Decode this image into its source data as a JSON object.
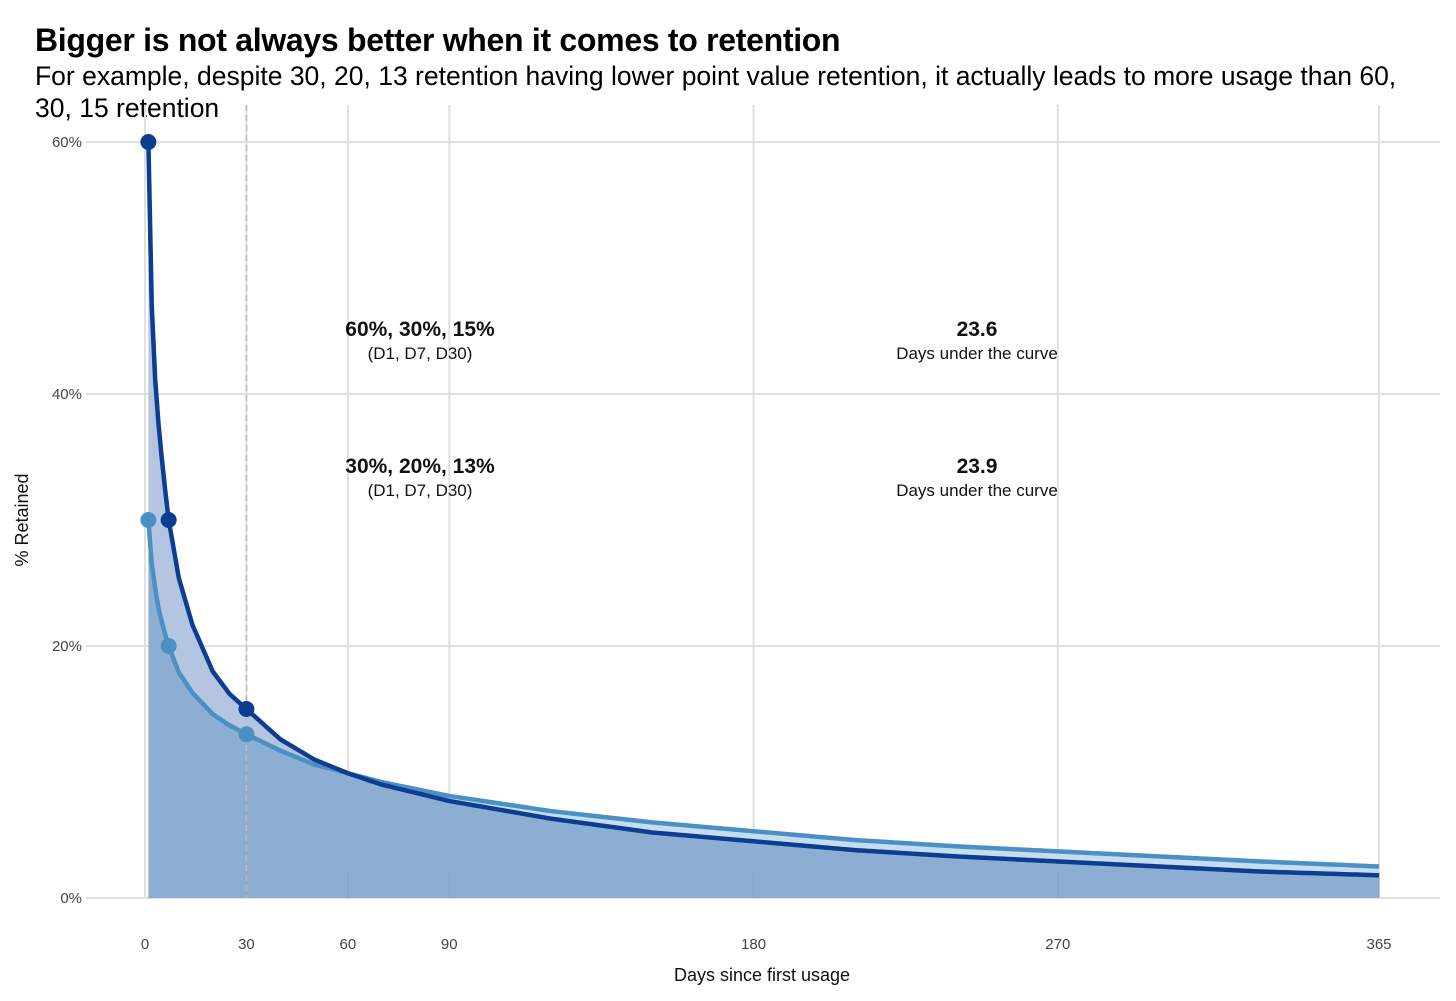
{
  "title": "Bigger is not always better when it comes to retention",
  "subtitle": "For example, despite 30, 20, 13 retention having lower point value retention, it actually leads to more usage than 60, 30, 15 retention",
  "colors": {
    "series_a_line": "#0b3d91",
    "series_b_line": "#4a90c4",
    "area_a": "#b3c5e0",
    "area_b": "#8caed3",
    "area_b_over_a": "#c6dcef",
    "grid": "#e0e0e0",
    "reference_line": "#bbbbbb"
  },
  "chart_data": {
    "type": "area",
    "xlabel": "Days since first usage",
    "ylabel": "% Retained",
    "xlim": [
      0,
      365
    ],
    "ylim": [
      0,
      60
    ],
    "x_ticks": [
      0,
      30,
      60,
      90,
      180,
      270,
      365
    ],
    "y_ticks": [
      0,
      20,
      40,
      60
    ],
    "y_tick_labels": [
      "0%",
      "20%",
      "40%",
      "60%"
    ],
    "grid": true,
    "reference_x": 30,
    "series": [
      {
        "key": "a",
        "points": [
          {
            "day": 1,
            "pct": 60
          },
          {
            "day": 7,
            "pct": 30
          },
          {
            "day": 30,
            "pct": 15
          }
        ],
        "curve": [
          [
            1,
            60
          ],
          [
            2,
            47.0
          ],
          [
            3,
            41.2
          ],
          [
            4,
            37.6
          ],
          [
            5,
            34.8
          ],
          [
            6,
            32.3
          ],
          [
            7,
            30.0
          ],
          [
            10,
            25.4
          ],
          [
            14,
            21.7
          ],
          [
            20,
            18.0
          ],
          [
            25,
            16.2
          ],
          [
            30,
            15.0
          ],
          [
            40,
            12.6
          ],
          [
            50,
            11.0
          ],
          [
            60,
            9.9
          ],
          [
            70,
            9.0
          ],
          [
            90,
            7.7
          ],
          [
            120,
            6.3
          ],
          [
            150,
            5.2
          ],
          [
            180,
            4.5
          ],
          [
            210,
            3.8
          ],
          [
            240,
            3.3
          ],
          [
            270,
            2.9
          ],
          [
            300,
            2.5
          ],
          [
            330,
            2.1
          ],
          [
            365,
            1.8
          ]
        ]
      },
      {
        "key": "b",
        "points": [
          {
            "day": 1,
            "pct": 30
          },
          {
            "day": 7,
            "pct": 20
          },
          {
            "day": 30,
            "pct": 13
          }
        ],
        "curve": [
          [
            1,
            30
          ],
          [
            2,
            26.5
          ],
          [
            3,
            24.6
          ],
          [
            4,
            23.0
          ],
          [
            5,
            21.9
          ],
          [
            6,
            20.9
          ],
          [
            7,
            20.0
          ],
          [
            10,
            17.9
          ],
          [
            14,
            16.3
          ],
          [
            20,
            14.6
          ],
          [
            25,
            13.7
          ],
          [
            30,
            13.0
          ],
          [
            40,
            11.7
          ],
          [
            50,
            10.6
          ],
          [
            60,
            9.9
          ],
          [
            70,
            9.2
          ],
          [
            90,
            8.1
          ],
          [
            120,
            6.9
          ],
          [
            150,
            6.0
          ],
          [
            180,
            5.3
          ],
          [
            210,
            4.6
          ],
          [
            240,
            4.1
          ],
          [
            270,
            3.7
          ],
          [
            300,
            3.3
          ],
          [
            330,
            2.9
          ],
          [
            365,
            2.5
          ]
        ]
      }
    ],
    "annotations": [
      {
        "series": "a",
        "values": "60%, 30%, 15%",
        "detail": "(D1, D7, D30)",
        "auc": "23.6",
        "auc_label": "Days under the curve"
      },
      {
        "series": "b",
        "values": "30%, 20%, 13%",
        "detail": "(D1, D7, D30)",
        "auc": "23.9",
        "auc_label": "Days under the curve"
      }
    ]
  }
}
